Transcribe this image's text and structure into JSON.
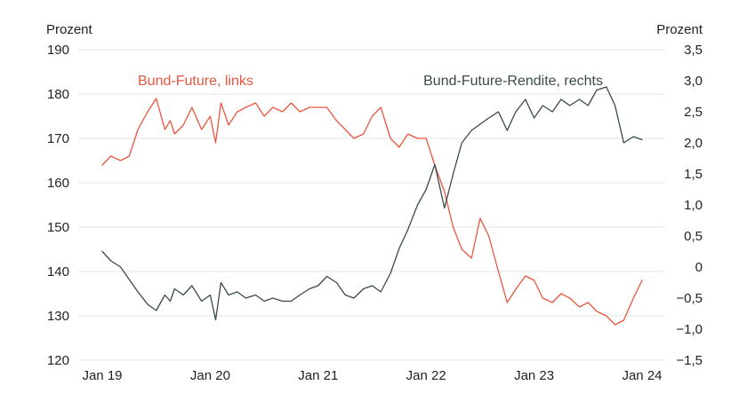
{
  "chart_data": {
    "type": "line",
    "title": "",
    "left_axis": {
      "unit_label": "Prozent",
      "ylim": [
        120,
        190
      ],
      "ticks": [
        "120",
        "130",
        "140",
        "150",
        "160",
        "170",
        "180",
        "190"
      ]
    },
    "right_axis": {
      "unit_label": "Prozent",
      "ylim": [
        -1.5,
        3.5
      ],
      "ticks": [
        "−1,5",
        "−1,0",
        "−0,5",
        "0",
        "0,5",
        "1,0",
        "1,5",
        "2,0",
        "2,5",
        "3,0",
        "3,5"
      ]
    },
    "x_axis": {
      "ticks": [
        "Jan 19",
        "Jan 20",
        "Jan 21",
        "Jan 22",
        "Jan 23",
        "Jan 24"
      ],
      "xlim": [
        2019.0,
        2024.0
      ]
    },
    "grid": true,
    "series": [
      {
        "name": "Bund-Future, links",
        "axis": "left",
        "color": "#e8573f",
        "x": [
          2019.0,
          2019.08,
          2019.17,
          2019.25,
          2019.33,
          2019.42,
          2019.5,
          2019.58,
          2019.63,
          2019.67,
          2019.75,
          2019.83,
          2019.92,
          2020.0,
          2020.05,
          2020.1,
          2020.17,
          2020.25,
          2020.33,
          2020.42,
          2020.5,
          2020.58,
          2020.67,
          2020.75,
          2020.83,
          2020.92,
          2021.0,
          2021.08,
          2021.17,
          2021.25,
          2021.33,
          2021.42,
          2021.5,
          2021.58,
          2021.67,
          2021.75,
          2021.83,
          2021.92,
          2022.0,
          2022.08,
          2022.17,
          2022.25,
          2022.33,
          2022.42,
          2022.5,
          2022.58,
          2022.67,
          2022.75,
          2022.83,
          2022.92,
          2023.0,
          2023.08,
          2023.17,
          2023.25,
          2023.33,
          2023.42,
          2023.5,
          2023.58,
          2023.67,
          2023.75,
          2023.83,
          2023.92,
          2024.0
        ],
        "values": [
          164,
          166,
          165,
          166,
          172,
          176,
          179,
          172,
          174,
          171,
          173,
          177,
          172,
          175,
          169,
          178,
          173,
          176,
          177,
          178,
          175,
          177,
          176,
          178,
          176,
          177,
          177,
          177,
          174,
          172,
          170,
          171,
          175,
          177,
          170,
          168,
          171,
          170,
          170,
          164,
          158,
          150,
          145,
          143,
          152,
          148,
          140,
          133,
          136,
          139,
          138,
          134,
          133,
          135,
          134,
          132,
          133,
          131,
          130,
          128,
          129,
          134,
          138
        ]
      },
      {
        "name": "Bund-Future-Rendite, rechts",
        "axis": "right",
        "color": "#3a4a4a",
        "x": [
          2019.0,
          2019.08,
          2019.17,
          2019.25,
          2019.33,
          2019.42,
          2019.5,
          2019.58,
          2019.63,
          2019.67,
          2019.75,
          2019.83,
          2019.92,
          2020.0,
          2020.05,
          2020.1,
          2020.17,
          2020.25,
          2020.33,
          2020.42,
          2020.5,
          2020.58,
          2020.67,
          2020.75,
          2020.83,
          2020.92,
          2021.0,
          2021.08,
          2021.17,
          2021.25,
          2021.33,
          2021.42,
          2021.5,
          2021.58,
          2021.67,
          2021.75,
          2021.83,
          2021.92,
          2022.0,
          2022.08,
          2022.17,
          2022.25,
          2022.33,
          2022.42,
          2022.5,
          2022.58,
          2022.67,
          2022.75,
          2022.83,
          2022.92,
          2023.0,
          2023.08,
          2023.17,
          2023.25,
          2023.33,
          2023.42,
          2023.5,
          2023.58,
          2023.67,
          2023.75,
          2023.83,
          2023.92,
          2024.0
        ],
        "values": [
          0.25,
          0.1,
          0.0,
          -0.2,
          -0.4,
          -0.6,
          -0.7,
          -0.45,
          -0.55,
          -0.35,
          -0.45,
          -0.3,
          -0.55,
          -0.45,
          -0.85,
          -0.25,
          -0.45,
          -0.4,
          -0.5,
          -0.45,
          -0.55,
          -0.5,
          -0.55,
          -0.55,
          -0.45,
          -0.35,
          -0.3,
          -0.15,
          -0.25,
          -0.45,
          -0.5,
          -0.35,
          -0.3,
          -0.4,
          -0.1,
          0.3,
          0.6,
          1.0,
          1.25,
          1.65,
          0.95,
          1.5,
          2.0,
          2.2,
          2.3,
          2.4,
          2.5,
          2.2,
          2.5,
          2.7,
          2.4,
          2.6,
          2.5,
          2.7,
          2.6,
          2.7,
          2.6,
          2.85,
          2.9,
          2.6,
          2.0,
          2.1,
          2.05
        ]
      }
    ]
  }
}
